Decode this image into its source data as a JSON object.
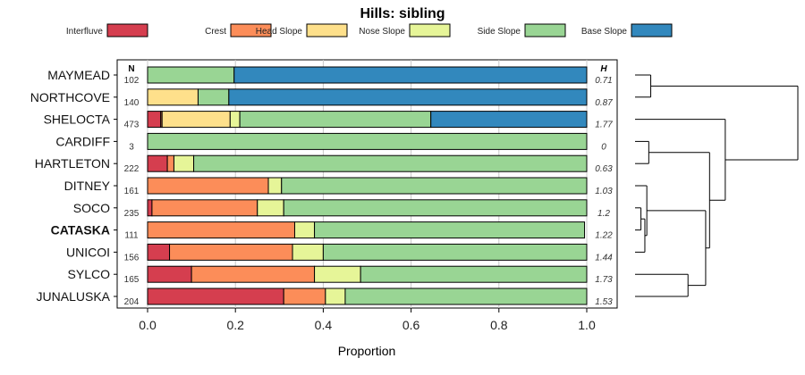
{
  "chart_data": {
    "type": "bar",
    "orientation": "horizontal",
    "stacked": true,
    "title": "Hills: sibling",
    "xlabel": "Proportion",
    "xlim": [
      0,
      1
    ],
    "xticks": [
      0,
      0.2,
      0.4,
      0.6,
      0.8,
      1
    ],
    "x_tick_labels": [
      "0.0",
      "0.2",
      "0.4",
      "0.6",
      "0.8",
      "1.0"
    ],
    "n_header": "N",
    "h_header": "H",
    "legend_position": "top",
    "legend": [
      {
        "name": "Interfluve",
        "color": "#d53e4f"
      },
      {
        "name": "Crest",
        "color": "#fc8d59"
      },
      {
        "name": "Head Slope",
        "color": "#fee08b"
      },
      {
        "name": "Nose Slope",
        "color": "#e6f598"
      },
      {
        "name": "Side Slope",
        "color": "#99d594"
      },
      {
        "name": "Base Slope",
        "color": "#3288bd"
      }
    ],
    "categories": [
      "MAYMEAD",
      "NORTHCOVE",
      "SHELOCTA",
      "CARDIFF",
      "HARTLETON",
      "DITNEY",
      "SOCO",
      "CATASKA",
      "UNICOI",
      "SYLCO",
      "JUNALUSKA"
    ],
    "highlight": "CATASKA",
    "n_values": [
      "102",
      "140",
      "473",
      "3",
      "222",
      "161",
      "235",
      "111",
      "156",
      "165",
      "204"
    ],
    "h_values": [
      "0.71",
      "0.87",
      "1.77",
      "0",
      "0.63",
      "1.03",
      "1.2",
      "1.22",
      "1.44",
      "1.73",
      "1.53"
    ],
    "series": [
      {
        "name": "Interfluve",
        "values": [
          0,
          0,
          0.03,
          0,
          0.045,
          0,
          0.01,
          0,
          0.05,
          0.1,
          0.31
        ]
      },
      {
        "name": "Crest",
        "values": [
          0,
          0,
          0.003,
          0,
          0.015,
          0.275,
          0.24,
          0.335,
          0.28,
          0.28,
          0.095
        ]
      },
      {
        "name": "Head Slope",
        "values": [
          0,
          0.115,
          0.155,
          0,
          0,
          0,
          0,
          0,
          0,
          0,
          0
        ]
      },
      {
        "name": "Nose Slope",
        "values": [
          0,
          0,
          0.022,
          0,
          0.045,
          0.03,
          0.06,
          0.045,
          0.07,
          0.105,
          0.045
        ]
      },
      {
        "name": "Side Slope",
        "values": [
          0.197,
          0.07,
          0.435,
          1.0,
          0.895,
          0.695,
          0.69,
          0.615,
          0.6,
          0.515,
          0.55
        ]
      },
      {
        "name": "Base Slope",
        "values": [
          0.803,
          0.815,
          0.355,
          0,
          0,
          0,
          0,
          0,
          0,
          0,
          0
        ]
      }
    ],
    "dendrogram": {
      "merges": [
        {
          "a": "MAYMEAD",
          "b": "NORTHCOVE",
          "h": 0.08
        },
        {
          "a": "CARDIFF",
          "b": "HARTLETON",
          "h": 0.07
        },
        {
          "a": "SOCO",
          "b": "CATASKA",
          "h": 0.03
        },
        {
          "a": "UNICOI",
          "b": "@2",
          "h": 0.05
        },
        {
          "a": "DITNEY",
          "b": "@3",
          "h": 0.06
        },
        {
          "a": "SYLCO",
          "b": "JUNALUSKA",
          "h": 0.27
        },
        {
          "a": "@4",
          "b": "@5",
          "h": 0.36
        },
        {
          "a": "@1",
          "b": "@6",
          "h": 0.38
        },
        {
          "a": "SHELOCTA",
          "b": "@7",
          "h": 0.46
        },
        {
          "a": "@0",
          "b": "@8",
          "h": 0.83
        }
      ],
      "max_height": 0.83
    }
  }
}
